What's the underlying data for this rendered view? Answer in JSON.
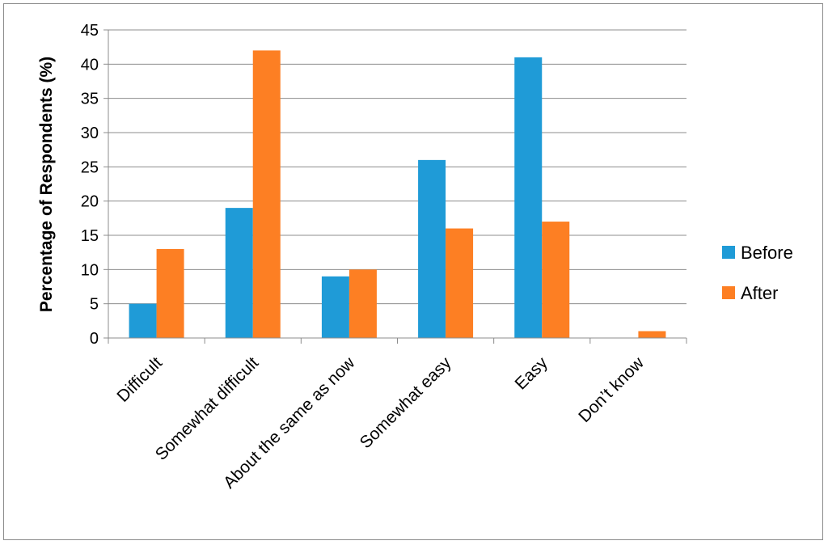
{
  "chart_data": {
    "type": "bar",
    "title": "",
    "xlabel": "",
    "ylabel": "Percentage of Respondents (%)",
    "ylim": [
      0,
      45
    ],
    "yticks": [
      0,
      5,
      10,
      15,
      20,
      25,
      30,
      35,
      40,
      45
    ],
    "grid": true,
    "legend_position": "right",
    "categories": [
      "Difficult",
      "Somewhat difficult",
      "About the same as now",
      "Somewhat easy",
      "Easy",
      "Don’t know"
    ],
    "series": [
      {
        "name": "Before",
        "color": "#1f9bd7",
        "values": [
          5,
          19,
          9,
          26,
          41,
          0
        ]
      },
      {
        "name": "After",
        "color": "#fd7f23",
        "values": [
          13,
          42,
          10,
          16,
          17,
          1
        ]
      }
    ]
  }
}
